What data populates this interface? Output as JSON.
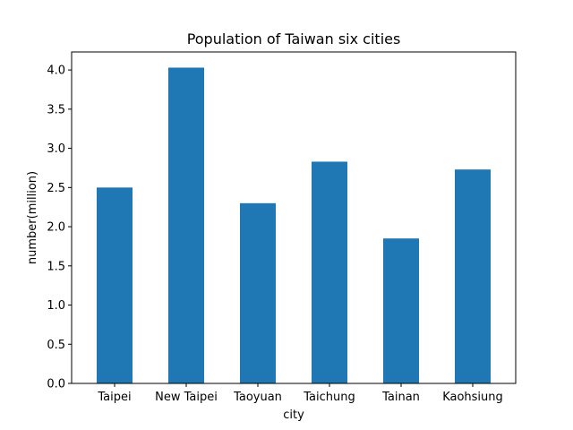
{
  "chart_data": {
    "type": "bar",
    "title": "Population of Taiwan six cities",
    "xlabel": "city",
    "ylabel": "number(million)",
    "categories": [
      "Taipei",
      "New Taipei",
      "Taoyuan",
      "Taichung",
      "Tainan",
      "Kaohsiung"
    ],
    "values": [
      2.5,
      4.03,
      2.3,
      2.83,
      1.85,
      2.73
    ],
    "ylim": [
      0,
      4.23
    ],
    "yticks": [
      "0.0",
      "0.5",
      "1.0",
      "1.5",
      "2.0",
      "2.5",
      "3.0",
      "3.5",
      "4.0"
    ],
    "grid": false,
    "bar_color": "#1f77b4"
  }
}
